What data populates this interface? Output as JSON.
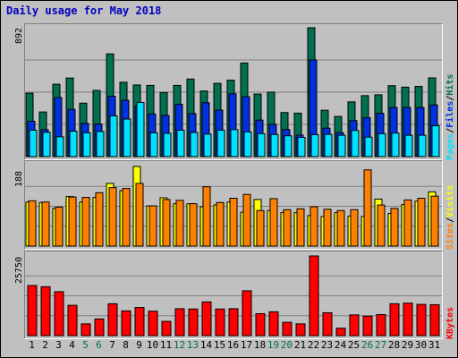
{
  "title": "Daily usage for May 2018",
  "colors": {
    "hits": "#007050",
    "files": "#0030e0",
    "pages": "#00e0ff",
    "visits": "#ffff00",
    "sites": "#ff8000",
    "kbytes": "#ff0000",
    "weekday_label": "#000000",
    "weekend_label": "#007050"
  },
  "legend": {
    "top": {
      "pages": "Pages",
      "sep1": "/",
      "files": "Files",
      "sep2": "/",
      "hits": "Hits"
    },
    "middle": {
      "sites": "Sites",
      "sep": "/",
      "visits": "Visits"
    },
    "bottom": {
      "kbytes": "KBytes"
    }
  },
  "chart_data": [
    {
      "type": "bar",
      "categories": [
        "1",
        "2",
        "3",
        "4",
        "5",
        "6",
        "7",
        "8",
        "9",
        "10",
        "11",
        "12",
        "13",
        "14",
        "15",
        "16",
        "17",
        "18",
        "19",
        "20",
        "21",
        "22",
        "23",
        "24",
        "25",
        "26",
        "27",
        "28",
        "29",
        "30",
        "31"
      ],
      "weekend_days": [
        "5",
        "6",
        "12",
        "13",
        "19",
        "20",
        "26",
        "27"
      ],
      "ymax_label": "892",
      "ylim": [
        0,
        892
      ],
      "series": [
        {
          "name": "Hits",
          "values": [
            439,
            309,
            501,
            544,
            370,
            458,
            711,
            515,
            496,
            493,
            444,
            493,
            537,
            454,
            507,
            529,
            648,
            433,
            446,
            305,
            301,
            892,
            321,
            278,
            379,
            422,
            428,
            491,
            481,
            486,
            545
          ]
        },
        {
          "name": "Files",
          "values": [
            245,
            186,
            409,
            327,
            230,
            226,
            418,
            390,
            351,
            295,
            285,
            362,
            298,
            373,
            322,
            435,
            415,
            253,
            223,
            187,
            149,
            669,
            197,
            166,
            249,
            269,
            300,
            340,
            340,
            340,
            358
          ]
        },
        {
          "name": "Pages",
          "values": [
            183,
            168,
            137,
            176,
            165,
            174,
            282,
            260,
            375,
            165,
            161,
            183,
            167,
            156,
            183,
            187,
            171,
            159,
            153,
            144,
            133,
            152,
            154,
            148,
            181,
            135,
            159,
            163,
            148,
            148,
            214
          ]
        }
      ]
    },
    {
      "type": "bar",
      "categories": [
        "1",
        "2",
        "3",
        "4",
        "5",
        "6",
        "7",
        "8",
        "9",
        "10",
        "11",
        "12",
        "13",
        "14",
        "15",
        "16",
        "17",
        "18",
        "19",
        "20",
        "21",
        "22",
        "23",
        "24",
        "25",
        "26",
        "27",
        "28",
        "29",
        "30",
        "31"
      ],
      "ymax_label": "188",
      "ylim": [
        0,
        188
      ],
      "series": [
        {
          "name": "Visits",
          "values": [
            104,
            103,
            89,
            117,
            104,
            115,
            148,
            131,
            188,
            95,
            114,
            100,
            100,
            93,
            97,
            104,
            80,
            110,
            84,
            79,
            79,
            72,
            70,
            79,
            71,
            70,
            111,
            77,
            98,
            106,
            128
          ]
        },
        {
          "name": "Sites",
          "values": [
            107,
            104,
            92,
            116,
            115,
            126,
            138,
            136,
            148,
            95,
            110,
            108,
            100,
            140,
            103,
            113,
            122,
            84,
            112,
            86,
            88,
            93,
            87,
            84,
            86,
            180,
            97,
            89,
            109,
            113,
            118
          ]
        }
      ]
    },
    {
      "type": "bar",
      "categories": [
        "1",
        "2",
        "3",
        "4",
        "5",
        "6",
        "7",
        "8",
        "9",
        "10",
        "11",
        "12",
        "13",
        "14",
        "15",
        "16",
        "17",
        "18",
        "19",
        "20",
        "21",
        "22",
        "23",
        "24",
        "25",
        "26",
        "27",
        "28",
        "29",
        "30",
        "31"
      ],
      "ymax_label": "25750",
      "ylim": [
        0,
        25750
      ],
      "series": [
        {
          "name": "KBytes",
          "values": [
            16200,
            15800,
            14200,
            9800,
            3800,
            5400,
            10300,
            8000,
            9100,
            7900,
            4600,
            8700,
            8600,
            10900,
            8600,
            8700,
            14500,
            7100,
            7700,
            4300,
            3800,
            25750,
            7400,
            2400,
            6700,
            6300,
            6800,
            10300,
            10500,
            10100,
            10000
          ]
        }
      ]
    }
  ]
}
